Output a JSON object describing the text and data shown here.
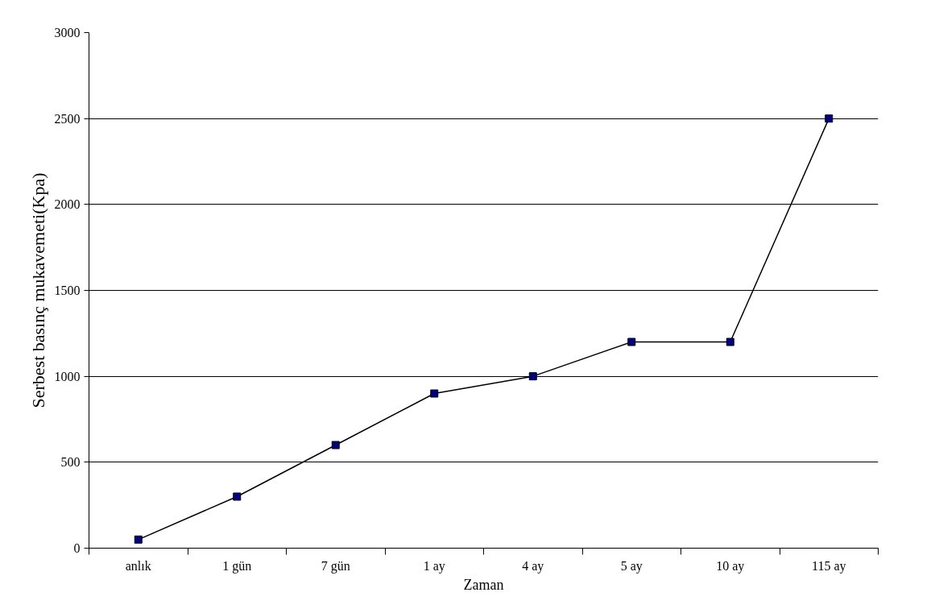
{
  "chart_data": {
    "type": "line",
    "xlabel": "Zaman",
    "ylabel": "Serbest basınç mukavemeti(Kpa)",
    "categories": [
      "anlık",
      "1 gün",
      "7 gün",
      "1 ay",
      "4 ay",
      "5 ay",
      "10 ay",
      "115 ay"
    ],
    "series": [
      {
        "color": "#000080",
        "values": [
          50,
          300,
          600,
          900,
          1000,
          1200,
          1200,
          2500
        ]
      }
    ],
    "ylim": [
      0,
      3000
    ],
    "yticks": [
      0,
      500,
      1000,
      1500,
      2000,
      2500,
      3000
    ],
    "grid": "y",
    "marker": "square",
    "line_style": "solid"
  }
}
